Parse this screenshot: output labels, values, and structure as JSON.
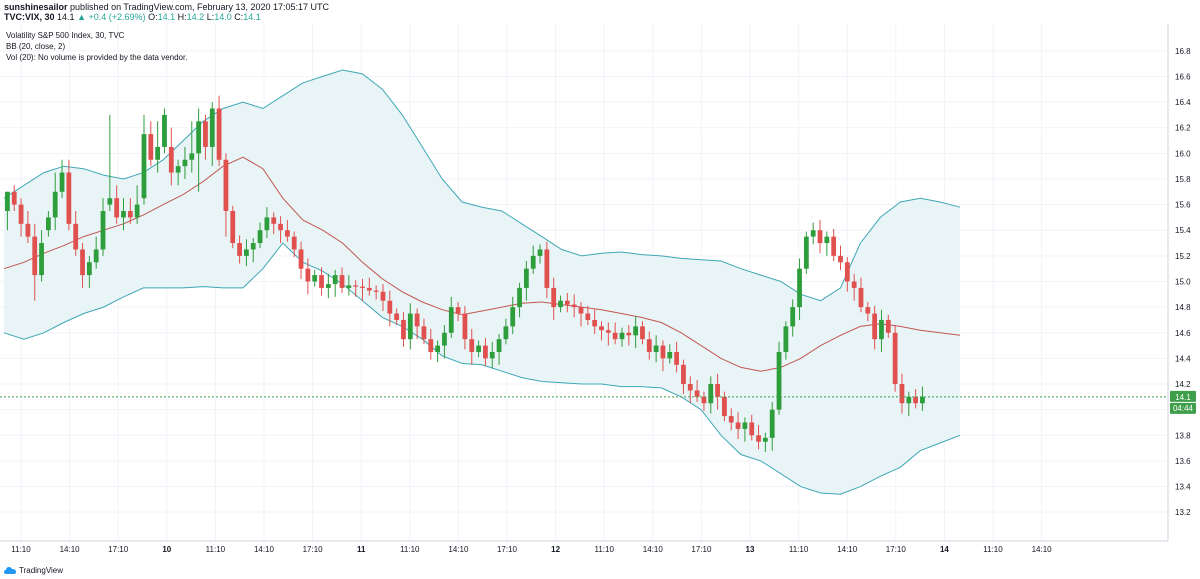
{
  "header": {
    "author": "sunshinesailor",
    "published_text": "published on TradingView.com, February 13, 2020 17:05:17 UTC",
    "symbol": "TVC:VIX, 30",
    "last": "14.1",
    "change": "+0.4 (+2.69%)",
    "o_label": "O:",
    "o": "14.1",
    "h_label": "H:",
    "h": "14.2",
    "l_label": "L:",
    "l": "14.0",
    "c_label": "C:",
    "c": "14.1"
  },
  "legend": {
    "title": "Volatility S&P 500 Index, 30, TVC",
    "bb": "BB (20, close, 2)",
    "vol": "Vol (20): No volume is provided by the data vendor."
  },
  "price_badge": "14.1",
  "countdown_badge": "04:44",
  "footer": {
    "brand": "TradingView"
  },
  "colors": {
    "up": "#26a69a",
    "candle_up": "#2e9d3c",
    "candle_down": "#e0504f",
    "bb_band": "#3fa7b5",
    "bb_fill": "#e8f4f6",
    "bb_basis": "#c2564f",
    "price_line": "#3f9e4a"
  },
  "chart_data": {
    "type": "candlestick",
    "y_ticks": [
      "16.8",
      "16.6",
      "16.4",
      "16.2",
      "16.0",
      "15.8",
      "15.6",
      "15.4",
      "15.2",
      "15.0",
      "14.8",
      "14.6",
      "14.4",
      "14.2",
      "14.0",
      "13.8",
      "13.6",
      "13.4",
      "13.2"
    ],
    "ylim": [
      13.1,
      16.9
    ],
    "x_ticks": [
      "11:10",
      "14:10",
      "17:10",
      "10",
      "11:10",
      "14:10",
      "17:10",
      "11",
      "11:10",
      "14:10",
      "17:10",
      "12",
      "11:10",
      "14:10",
      "17:10",
      "13",
      "11:10",
      "14:10",
      "17:10",
      "14",
      "11:10",
      "14:10"
    ],
    "bb_upper": [
      15.65,
      15.75,
      15.85,
      15.9,
      15.88,
      15.83,
      15.8,
      15.85,
      15.95,
      16.1,
      16.25,
      16.35,
      16.4,
      16.35,
      16.45,
      16.55,
      16.6,
      16.65,
      16.62,
      16.5,
      16.3,
      16.05,
      15.8,
      15.62,
      15.58,
      15.55,
      15.45,
      15.35,
      15.25,
      15.2,
      15.22,
      15.23,
      15.21,
      15.2,
      15.18,
      15.17,
      15.16,
      15.1,
      15.05,
      15.0,
      14.9,
      14.85,
      14.95,
      15.3,
      15.5,
      15.62,
      15.65,
      15.62,
      15.58
    ],
    "bb_lower": [
      14.6,
      14.55,
      14.6,
      14.68,
      14.75,
      14.8,
      14.88,
      14.95,
      14.95,
      14.95,
      14.96,
      14.95,
      14.95,
      15.1,
      15.3,
      15.15,
      15.08,
      14.98,
      14.85,
      14.72,
      14.65,
      14.55,
      14.42,
      14.36,
      14.35,
      14.3,
      14.25,
      14.22,
      14.21,
      14.2,
      14.2,
      14.18,
      14.18,
      14.17,
      14.1,
      14.0,
      13.8,
      13.65,
      13.6,
      13.5,
      13.4,
      13.35,
      13.34,
      13.4,
      13.48,
      13.55,
      13.68,
      13.74,
      13.8
    ],
    "bb_basis": [
      15.1,
      15.15,
      15.22,
      15.28,
      15.35,
      15.4,
      15.45,
      15.52,
      15.6,
      15.68,
      15.78,
      15.9,
      15.97,
      15.88,
      15.65,
      15.48,
      15.4,
      15.3,
      15.15,
      15.02,
      14.92,
      14.84,
      14.78,
      14.74,
      14.77,
      14.8,
      14.83,
      14.84,
      14.82,
      14.8,
      14.78,
      14.75,
      14.72,
      14.68,
      14.6,
      14.5,
      14.4,
      14.33,
      14.3,
      14.33,
      14.4,
      14.5,
      14.58,
      14.65,
      14.67,
      14.65,
      14.62,
      14.6,
      14.58
    ],
    "candles": [
      [
        15.55,
        15.7,
        15.4,
        15.7
      ],
      [
        15.7,
        15.75,
        15.55,
        15.6
      ],
      [
        15.6,
        15.65,
        15.35,
        15.45
      ],
      [
        15.45,
        15.55,
        15.3,
        15.35
      ],
      [
        15.35,
        15.45,
        14.85,
        15.05
      ],
      [
        15.05,
        15.4,
        15.0,
        15.3
      ],
      [
        15.4,
        15.55,
        15.35,
        15.5
      ],
      [
        15.5,
        15.85,
        15.4,
        15.7
      ],
      [
        15.7,
        15.95,
        15.65,
        15.85
      ],
      [
        15.85,
        15.95,
        15.4,
        15.45
      ],
      [
        15.45,
        15.55,
        15.2,
        15.25
      ],
      [
        15.25,
        15.3,
        14.95,
        15.05
      ],
      [
        15.05,
        15.2,
        14.95,
        15.15
      ],
      [
        15.15,
        15.35,
        15.1,
        15.25
      ],
      [
        15.25,
        15.65,
        15.2,
        15.55
      ],
      [
        15.6,
        16.3,
        15.55,
        15.65
      ],
      [
        15.65,
        15.75,
        15.45,
        15.5
      ],
      [
        15.5,
        15.65,
        15.4,
        15.55
      ],
      [
        15.55,
        15.65,
        15.45,
        15.5
      ],
      [
        15.5,
        15.75,
        15.45,
        15.6
      ],
      [
        15.65,
        16.3,
        15.6,
        16.15
      ],
      [
        16.15,
        16.25,
        15.9,
        15.95
      ],
      [
        15.95,
        16.25,
        15.85,
        16.05
      ],
      [
        16.05,
        16.35,
        16.0,
        16.3
      ],
      [
        16.05,
        16.2,
        15.75,
        15.85
      ],
      [
        15.85,
        15.95,
        15.75,
        15.9
      ],
      [
        15.9,
        16.05,
        15.8,
        15.95
      ],
      [
        15.95,
        16.25,
        15.85,
        16.0
      ],
      [
        16.0,
        16.35,
        15.7,
        16.25
      ],
      [
        16.25,
        16.3,
        15.95,
        16.05
      ],
      [
        16.05,
        16.4,
        15.9,
        16.35
      ],
      [
        16.35,
        16.45,
        15.9,
        15.95
      ],
      [
        15.95,
        16.0,
        15.35,
        15.55
      ]
    ]
  }
}
